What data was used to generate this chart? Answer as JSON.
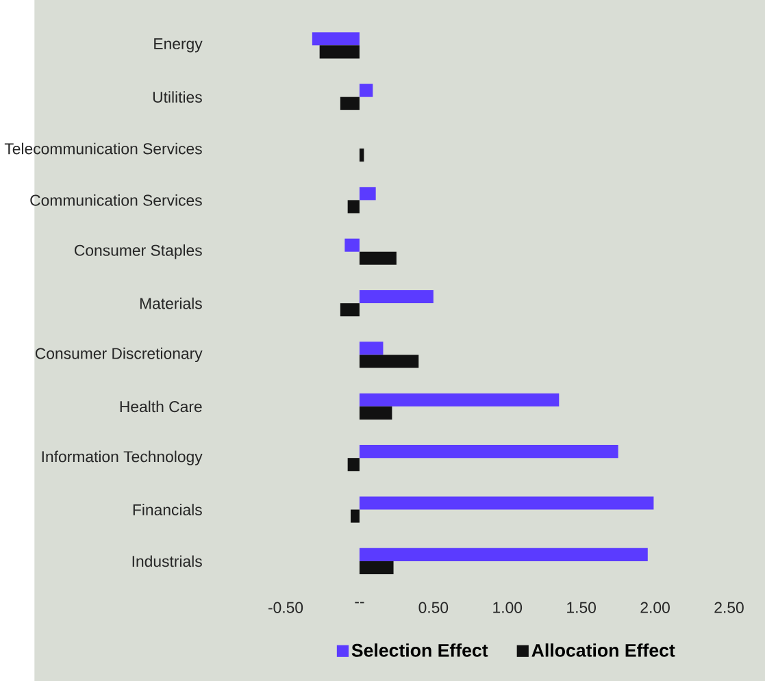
{
  "chart_data": {
    "type": "bar",
    "orientation": "horizontal",
    "categories": [
      "Energy",
      "Utilities",
      "Telecommunication Services",
      "Communication Services",
      "Consumer Staples",
      "Materials",
      "Consumer Discretionary",
      "Health Care",
      "Information Technology",
      "Financials",
      "Industrials"
    ],
    "series": [
      {
        "name": "Selection Effect",
        "color": "#5b3bff",
        "values": [
          -0.32,
          0.09,
          null,
          0.11,
          -0.1,
          0.5,
          0.16,
          1.35,
          1.75,
          1.99,
          1.95
        ]
      },
      {
        "name": "Allocation Effect",
        "color": "#111111",
        "values": [
          -0.27,
          -0.13,
          0.03,
          -0.08,
          0.25,
          -0.13,
          0.4,
          0.22,
          -0.08,
          -0.06,
          0.23
        ]
      }
    ],
    "xlim": [
      -0.5,
      2.5
    ],
    "xticks": [
      {
        "value": -0.5,
        "label": "-0.50"
      },
      {
        "value": 0,
        "label": "--"
      },
      {
        "value": 0.5,
        "label": "0.50"
      },
      {
        "value": 1.0,
        "label": "1.00"
      },
      {
        "value": 1.5,
        "label": "1.50"
      },
      {
        "value": 2.0,
        "label": "2.00"
      },
      {
        "value": 2.5,
        "label": "2.50"
      }
    ],
    "legend": "bottom",
    "grid": false
  }
}
